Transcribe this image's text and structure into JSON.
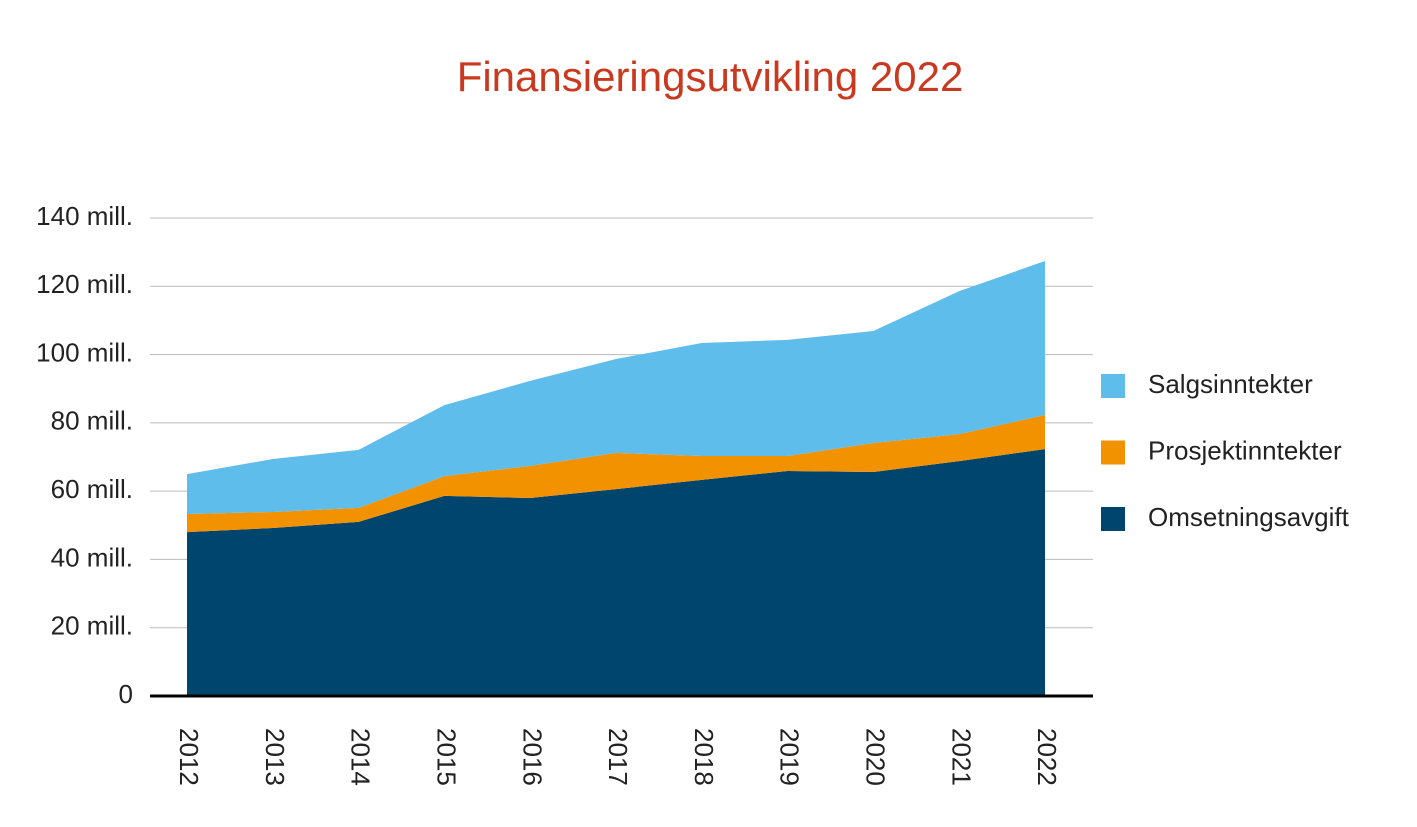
{
  "chart_data": {
    "type": "stacked_area",
    "title": "Finansieringsutvikling 2022",
    "categories": [
      "2012",
      "2013",
      "2014",
      "2015",
      "2016",
      "2017",
      "2018",
      "2019",
      "2020",
      "2021",
      "2022"
    ],
    "series": [
      {
        "name": "Salgsinntekter",
        "color": "#5ebdea",
        "values": [
          11.7,
          15.5,
          17.0,
          20.8,
          24.9,
          27.5,
          33.1,
          34.0,
          32.8,
          41.9,
          45.1
        ]
      },
      {
        "name": "Prosjektinntekter",
        "color": "#f39200",
        "values": [
          5.3,
          4.7,
          4.1,
          5.8,
          9.4,
          10.6,
          7.0,
          4.4,
          8.5,
          7.9,
          10.0
        ]
      },
      {
        "name": "Omsetningsavgift",
        "color": "#00456e",
        "values": [
          48.0,
          49.2,
          51.0,
          58.6,
          58.0,
          60.6,
          63.3,
          65.9,
          65.6,
          68.8,
          72.3
        ]
      }
    ],
    "ylim": [
      0,
      140
    ],
    "yticks": [
      0,
      {
        "value": 20,
        "label": "20 mill."
      },
      {
        "value": 40,
        "label": "40 mill."
      },
      {
        "value": 60,
        "label": "60 mill."
      },
      {
        "value": 80,
        "label": "80 mill."
      },
      {
        "value": 100,
        "label": "100 mill."
      },
      {
        "value": 120,
        "label": "120 mill."
      },
      {
        "value": 140,
        "label": "140 mill."
      }
    ],
    "grid": true,
    "legend": "right"
  }
}
